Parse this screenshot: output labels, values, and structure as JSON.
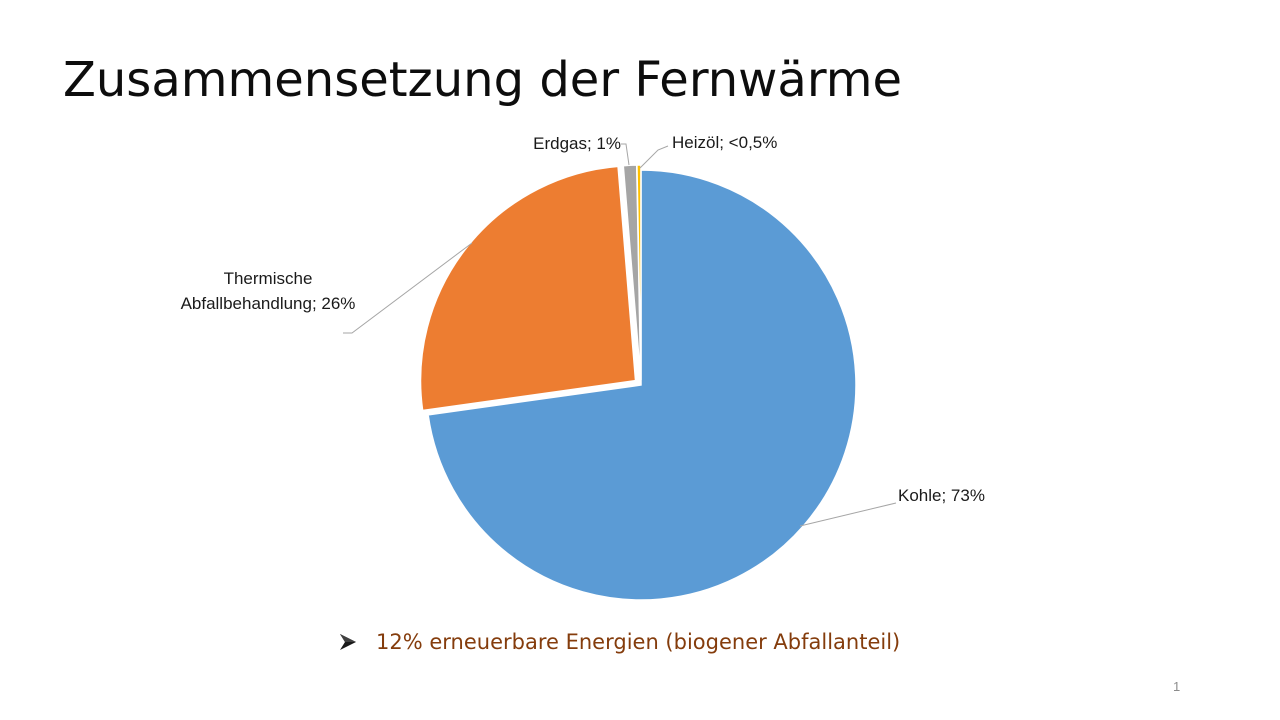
{
  "slide": {
    "title": "Zusammensetzung der Fernwärme",
    "bullet_text": "12% erneuerbare Energien (biogener Abfallanteil)",
    "page_number": "1"
  },
  "colors": {
    "title": "#0d0d0d",
    "bullet": "#843c0c",
    "leader_line": "#a6a6a6"
  },
  "icons": {
    "bullet": "arrow-bullet-icon"
  },
  "chart_data": {
    "type": "pie",
    "title": "",
    "slices": [
      {
        "label": "Kohle; 73%",
        "value": 73,
        "color": "#5b9bd5"
      },
      {
        "label": "Thermische Abfallbehandlung; 26%",
        "label_lines": [
          "Thermische",
          "Abfallbehandlung;  26%"
        ],
        "value": 26,
        "color": "#ed7d31"
      },
      {
        "label": "Erdgas; 1%",
        "value": 1,
        "color": "#a5a5a5"
      },
      {
        "label": "Heizöl; <0,5%",
        "value": 0.3,
        "color": "#ffc000"
      }
    ],
    "legend": "none",
    "data_labels": true,
    "start_angle": "12 o'clock",
    "direction": "clockwise"
  }
}
